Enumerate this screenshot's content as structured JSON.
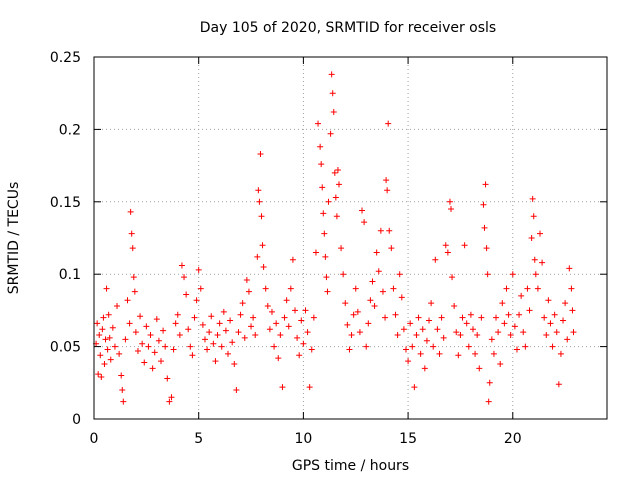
{
  "chart_data": {
    "type": "scatter",
    "title": "Day 105 of 2020, SRMTID for receiver osls",
    "xlabel": "GPS time / hours",
    "ylabel": "SRMTID / TECUs",
    "xlim": [
      0,
      24.5
    ],
    "ylim": [
      0,
      0.25
    ],
    "xticks": [
      0,
      5,
      10,
      15,
      20
    ],
    "xtick_labels": [
      "0",
      "5",
      "10",
      "15",
      "20"
    ],
    "yticks": [
      0,
      0.05,
      0.1,
      0.15,
      0.2,
      0.25
    ],
    "ytick_labels": [
      "0",
      "0.05",
      "0.1",
      "0.15",
      "0.2",
      "0.25"
    ],
    "grid": true,
    "marker": "+",
    "color": "#ff0000",
    "series": [
      {
        "name": "SRMTID",
        "points": [
          [
            0.1,
            0.052
          ],
          [
            0.15,
            0.066
          ],
          [
            0.2,
            0.031
          ],
          [
            0.25,
            0.058
          ],
          [
            0.3,
            0.044
          ],
          [
            0.35,
            0.029
          ],
          [
            0.4,
            0.062
          ],
          [
            0.45,
            0.07
          ],
          [
            0.5,
            0.038
          ],
          [
            0.55,
            0.055
          ],
          [
            0.6,
            0.09
          ],
          [
            0.65,
            0.048
          ],
          [
            0.7,
            0.072
          ],
          [
            0.75,
            0.056
          ],
          [
            0.8,
            0.041
          ],
          [
            0.9,
            0.063
          ],
          [
            1.0,
            0.05
          ],
          [
            1.1,
            0.078
          ],
          [
            1.2,
            0.045
          ],
          [
            1.3,
            0.03
          ],
          [
            1.35,
            0.02
          ],
          [
            1.4,
            0.012
          ],
          [
            1.5,
            0.055
          ],
          [
            1.6,
            0.082
          ],
          [
            1.7,
            0.066
          ],
          [
            1.75,
            0.143
          ],
          [
            1.8,
            0.128
          ],
          [
            1.85,
            0.118
          ],
          [
            1.9,
            0.098
          ],
          [
            1.95,
            0.088
          ],
          [
            2.0,
            0.06
          ],
          [
            2.1,
            0.047
          ],
          [
            2.2,
            0.071
          ],
          [
            2.3,
            0.052
          ],
          [
            2.4,
            0.039
          ],
          [
            2.5,
            0.064
          ],
          [
            2.6,
            0.05
          ],
          [
            2.7,
            0.058
          ],
          [
            2.8,
            0.035
          ],
          [
            2.9,
            0.046
          ],
          [
            3.0,
            0.069
          ],
          [
            3.1,
            0.054
          ],
          [
            3.2,
            0.04
          ],
          [
            3.3,
            0.061
          ],
          [
            3.4,
            0.05
          ],
          [
            3.5,
            0.028
          ],
          [
            3.6,
            0.012
          ],
          [
            3.7,
            0.015
          ],
          [
            3.8,
            0.048
          ],
          [
            3.9,
            0.066
          ],
          [
            4.0,
            0.072
          ],
          [
            4.1,
            0.058
          ],
          [
            4.2,
            0.106
          ],
          [
            4.3,
            0.098
          ],
          [
            4.4,
            0.086
          ],
          [
            4.5,
            0.062
          ],
          [
            4.6,
            0.05
          ],
          [
            4.7,
            0.044
          ],
          [
            4.8,
            0.07
          ],
          [
            4.9,
            0.082
          ],
          [
            5.0,
            0.103
          ],
          [
            5.1,
            0.09
          ],
          [
            5.2,
            0.065
          ],
          [
            5.3,
            0.055
          ],
          [
            5.4,
            0.048
          ],
          [
            5.5,
            0.06
          ],
          [
            5.6,
            0.071
          ],
          [
            5.7,
            0.052
          ],
          [
            5.8,
            0.04
          ],
          [
            5.9,
            0.058
          ],
          [
            6.0,
            0.066
          ],
          [
            6.1,
            0.05
          ],
          [
            6.2,
            0.074
          ],
          [
            6.3,
            0.061
          ],
          [
            6.4,
            0.045
          ],
          [
            6.5,
            0.068
          ],
          [
            6.6,
            0.053
          ],
          [
            6.7,
            0.038
          ],
          [
            6.8,
            0.02
          ],
          [
            6.9,
            0.06
          ],
          [
            7.0,
            0.072
          ],
          [
            7.1,
            0.08
          ],
          [
            7.2,
            0.056
          ],
          [
            7.3,
            0.096
          ],
          [
            7.4,
            0.088
          ],
          [
            7.5,
            0.064
          ],
          [
            7.6,
            0.07
          ],
          [
            7.7,
            0.058
          ],
          [
            7.8,
            0.112
          ],
          [
            7.85,
            0.158
          ],
          [
            7.9,
            0.15
          ],
          [
            7.95,
            0.183
          ],
          [
            8.0,
            0.14
          ],
          [
            8.05,
            0.12
          ],
          [
            8.1,
            0.105
          ],
          [
            8.2,
            0.09
          ],
          [
            8.3,
            0.078
          ],
          [
            8.4,
            0.062
          ],
          [
            8.5,
            0.074
          ],
          [
            8.6,
            0.05
          ],
          [
            8.7,
            0.066
          ],
          [
            8.8,
            0.042
          ],
          [
            8.9,
            0.058
          ],
          [
            9.0,
            0.022
          ],
          [
            9.1,
            0.07
          ],
          [
            9.2,
            0.082
          ],
          [
            9.3,
            0.064
          ],
          [
            9.4,
            0.09
          ],
          [
            9.5,
            0.11
          ],
          [
            9.6,
            0.075
          ],
          [
            9.7,
            0.056
          ],
          [
            9.8,
            0.044
          ],
          [
            9.9,
            0.068
          ],
          [
            10.0,
            0.052
          ],
          [
            10.1,
            0.075
          ],
          [
            10.2,
            0.06
          ],
          [
            10.3,
            0.022
          ],
          [
            10.4,
            0.048
          ],
          [
            10.5,
            0.07
          ],
          [
            10.6,
            0.115
          ],
          [
            10.7,
            0.204
          ],
          [
            10.8,
            0.188
          ],
          [
            10.85,
            0.176
          ],
          [
            10.9,
            0.16
          ],
          [
            10.95,
            0.142
          ],
          [
            11.0,
            0.128
          ],
          [
            11.05,
            0.112
          ],
          [
            11.1,
            0.098
          ],
          [
            11.15,
            0.088
          ],
          [
            11.2,
            0.15
          ],
          [
            11.3,
            0.197
          ],
          [
            11.35,
            0.238
          ],
          [
            11.4,
            0.225
          ],
          [
            11.45,
            0.212
          ],
          [
            11.5,
            0.17
          ],
          [
            11.55,
            0.153
          ],
          [
            11.6,
            0.14
          ],
          [
            11.65,
            0.172
          ],
          [
            11.7,
            0.162
          ],
          [
            11.8,
            0.118
          ],
          [
            11.9,
            0.1
          ],
          [
            12.0,
            0.08
          ],
          [
            12.1,
            0.065
          ],
          [
            12.2,
            0.048
          ],
          [
            12.3,
            0.058
          ],
          [
            12.4,
            0.072
          ],
          [
            12.5,
            0.09
          ],
          [
            12.6,
            0.074
          ],
          [
            12.7,
            0.06
          ],
          [
            12.8,
            0.144
          ],
          [
            12.9,
            0.136
          ],
          [
            13.0,
            0.05
          ],
          [
            13.1,
            0.066
          ],
          [
            13.2,
            0.082
          ],
          [
            13.3,
            0.095
          ],
          [
            13.4,
            0.078
          ],
          [
            13.5,
            0.115
          ],
          [
            13.6,
            0.102
          ],
          [
            13.7,
            0.13
          ],
          [
            13.8,
            0.088
          ],
          [
            13.9,
            0.07
          ],
          [
            13.95,
            0.165
          ],
          [
            14.0,
            0.158
          ],
          [
            14.05,
            0.204
          ],
          [
            14.1,
            0.13
          ],
          [
            14.2,
            0.118
          ],
          [
            14.3,
            0.09
          ],
          [
            14.4,
            0.072
          ],
          [
            14.5,
            0.058
          ],
          [
            14.6,
            0.1
          ],
          [
            14.7,
            0.084
          ],
          [
            14.8,
            0.062
          ],
          [
            14.9,
            0.048
          ],
          [
            15.0,
            0.04
          ],
          [
            15.1,
            0.066
          ],
          [
            15.2,
            0.05
          ],
          [
            15.3,
            0.022
          ],
          [
            15.4,
            0.058
          ],
          [
            15.5,
            0.07
          ],
          [
            15.6,
            0.045
          ],
          [
            15.7,
            0.062
          ],
          [
            15.8,
            0.035
          ],
          [
            15.9,
            0.054
          ],
          [
            16.0,
            0.068
          ],
          [
            16.1,
            0.08
          ],
          [
            16.2,
            0.05
          ],
          [
            16.3,
            0.11
          ],
          [
            16.4,
            0.062
          ],
          [
            16.5,
            0.045
          ],
          [
            16.6,
            0.07
          ],
          [
            16.7,
            0.056
          ],
          [
            16.8,
            0.12
          ],
          [
            16.9,
            0.115
          ],
          [
            17.0,
            0.15
          ],
          [
            17.05,
            0.145
          ],
          [
            17.1,
            0.098
          ],
          [
            17.2,
            0.078
          ],
          [
            17.3,
            0.06
          ],
          [
            17.4,
            0.044
          ],
          [
            17.5,
            0.058
          ],
          [
            17.6,
            0.07
          ],
          [
            17.7,
            0.12
          ],
          [
            17.8,
            0.066
          ],
          [
            17.9,
            0.05
          ],
          [
            18.0,
            0.072
          ],
          [
            18.1,
            0.062
          ],
          [
            18.2,
            0.045
          ],
          [
            18.3,
            0.058
          ],
          [
            18.4,
            0.035
          ],
          [
            18.5,
            0.07
          ],
          [
            18.6,
            0.148
          ],
          [
            18.65,
            0.132
          ],
          [
            18.7,
            0.162
          ],
          [
            18.75,
            0.118
          ],
          [
            18.8,
            0.1
          ],
          [
            18.85,
            0.012
          ],
          [
            18.9,
            0.025
          ],
          [
            19.0,
            0.055
          ],
          [
            19.1,
            0.045
          ],
          [
            19.2,
            0.07
          ],
          [
            19.3,
            0.06
          ],
          [
            19.4,
            0.038
          ],
          [
            19.5,
            0.08
          ],
          [
            19.6,
            0.066
          ],
          [
            19.7,
            0.09
          ],
          [
            19.8,
            0.072
          ],
          [
            19.9,
            0.058
          ],
          [
            20.0,
            0.1
          ],
          [
            20.1,
            0.064
          ],
          [
            20.2,
            0.048
          ],
          [
            20.3,
            0.072
          ],
          [
            20.4,
            0.085
          ],
          [
            20.5,
            0.06
          ],
          [
            20.6,
            0.05
          ],
          [
            20.7,
            0.09
          ],
          [
            20.8,
            0.075
          ],
          [
            20.9,
            0.125
          ],
          [
            20.95,
            0.152
          ],
          [
            21.0,
            0.14
          ],
          [
            21.05,
            0.11
          ],
          [
            21.1,
            0.1
          ],
          [
            21.2,
            0.09
          ],
          [
            21.3,
            0.128
          ],
          [
            21.4,
            0.108
          ],
          [
            21.5,
            0.07
          ],
          [
            21.6,
            0.058
          ],
          [
            21.7,
            0.082
          ],
          [
            21.8,
            0.066
          ],
          [
            21.9,
            0.05
          ],
          [
            22.0,
            0.072
          ],
          [
            22.1,
            0.06
          ],
          [
            22.2,
            0.024
          ],
          [
            22.3,
            0.045
          ],
          [
            22.4,
            0.068
          ],
          [
            22.5,
            0.08
          ],
          [
            22.6,
            0.055
          ],
          [
            22.7,
            0.104
          ],
          [
            22.8,
            0.09
          ],
          [
            22.85,
            0.075
          ],
          [
            22.9,
            0.06
          ]
        ]
      }
    ]
  }
}
